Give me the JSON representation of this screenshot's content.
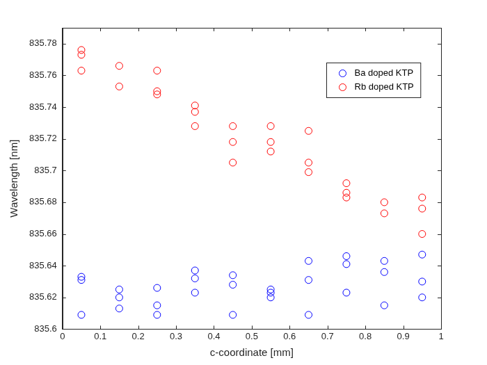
{
  "chart_data": {
    "type": "scatter",
    "x_label": "c-coordinate [mm]",
    "y_label": "Wavelength [nm]",
    "xlim": [
      0,
      1
    ],
    "xticks": [
      0,
      0.1,
      0.2,
      0.3,
      0.4,
      0.5,
      0.6,
      0.7,
      0.8,
      0.9,
      1
    ],
    "ylim": [
      835.6,
      835.79
    ],
    "yticks": [
      835.6,
      835.62,
      835.64,
      835.66,
      835.68,
      835.7,
      835.72,
      835.74,
      835.76,
      835.78
    ],
    "grid": false,
    "legend": "upper right",
    "series": [
      {
        "name": "Ba doped KTP",
        "color": "#0000ff",
        "marker": "circle",
        "x": [
          0.05,
          0.05,
          0.05,
          0.15,
          0.15,
          0.15,
          0.25,
          0.25,
          0.25,
          0.35,
          0.35,
          0.35,
          0.45,
          0.45,
          0.45,
          0.55,
          0.55,
          0.55,
          0.65,
          0.65,
          0.65,
          0.75,
          0.75,
          0.75,
          0.85,
          0.85,
          0.85,
          0.95,
          0.95,
          0.95
        ],
        "values": [
          835.633,
          835.631,
          835.609,
          835.625,
          835.62,
          835.613,
          835.626,
          835.615,
          835.609,
          835.637,
          835.632,
          835.623,
          835.634,
          835.628,
          835.609,
          835.625,
          835.623,
          835.62,
          835.643,
          835.631,
          835.609,
          835.646,
          835.641,
          835.623,
          835.643,
          835.636,
          835.615,
          835.647,
          835.63,
          835.62
        ]
      },
      {
        "name": "Rb doped KTP",
        "color": "#ff0000",
        "marker": "circle",
        "x": [
          0.05,
          0.05,
          0.05,
          0.15,
          0.15,
          0.25,
          0.25,
          0.25,
          0.35,
          0.35,
          0.35,
          0.45,
          0.45,
          0.45,
          0.55,
          0.55,
          0.55,
          0.65,
          0.65,
          0.65,
          0.75,
          0.75,
          0.75,
          0.85,
          0.85,
          0.95,
          0.95,
          0.95
        ],
        "values": [
          835.776,
          835.773,
          835.763,
          835.766,
          835.753,
          835.763,
          835.75,
          835.748,
          835.741,
          835.737,
          835.728,
          835.728,
          835.718,
          835.705,
          835.728,
          835.718,
          835.712,
          835.725,
          835.705,
          835.699,
          835.692,
          835.686,
          835.683,
          835.68,
          835.673,
          835.683,
          835.676,
          835.66
        ]
      }
    ]
  }
}
